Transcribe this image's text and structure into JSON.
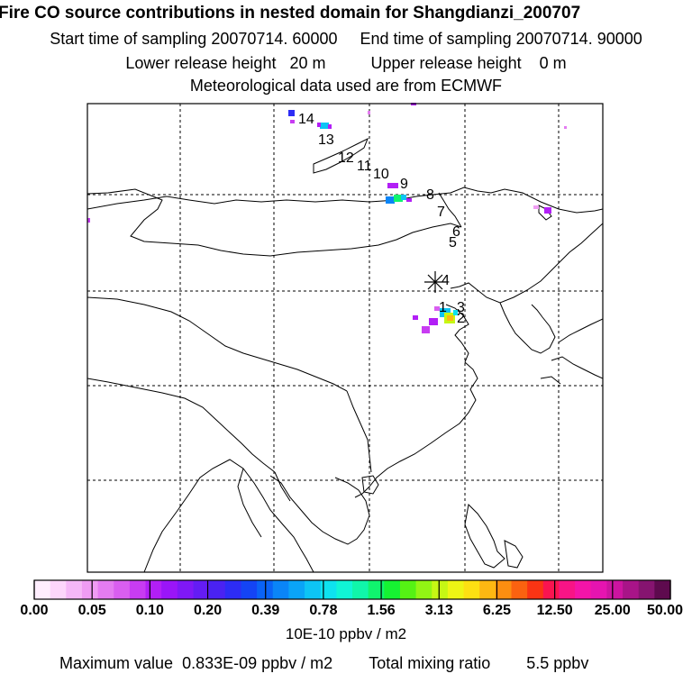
{
  "header": {
    "title": "Fire CO source contributions in nested domain for Shangdianzi_200707",
    "start_label": "Start time of sampling",
    "start_value": "20070714. 60000",
    "end_label": "End time of sampling",
    "end_value": "20070714. 90000",
    "lower_label": "Lower release height",
    "lower_value": "20 m",
    "upper_label": "Upper release height",
    "upper_value": "0 m",
    "met": "Meteorological data used are from ECMWF"
  },
  "trajectory_labels": [
    "1",
    "2",
    "3",
    "4",
    "5",
    "6",
    "7",
    "8",
    "9",
    "10",
    "11",
    "12",
    "13",
    "14"
  ],
  "colorbar": {
    "colors": [
      "#ffeefe",
      "#fdd6fb",
      "#f5b8f7",
      "#ef9cf3",
      "#e47cf1",
      "#d95ef0",
      "#c83cf2",
      "#b21ff6",
      "#9a15f8",
      "#7f18f6",
      "#641cf4",
      "#4a22f2",
      "#2d2cf5",
      "#1444f5",
      "#0a63f6",
      "#0a85f7",
      "#0aa4f7",
      "#0dc4f5",
      "#0ee2ef",
      "#10f5d6",
      "#10f6aa",
      "#10f46e",
      "#16f232",
      "#55f214",
      "#92f514",
      "#c6f714",
      "#eef514",
      "#fde012",
      "#fdb812",
      "#fc8e10",
      "#fb6210",
      "#fa3414",
      "#f91450",
      "#f81486",
      "#f414a8",
      "#e614b0",
      "#cc14a0",
      "#a81488",
      "#861470",
      "#5e0a4e"
    ],
    "ticks": [
      "0.00",
      "0.05",
      "0.10",
      "0.20",
      "0.39",
      "0.78",
      "1.56",
      "3.13",
      "6.25",
      "12.50",
      "25.00",
      "50.00"
    ],
    "unit": "10E-10 ppbv / m2"
  },
  "footer": {
    "max_label": "Maximum value",
    "max_value": "0.833E-09 ppbv / m2",
    "total_label": "Total mixing ratio",
    "total_value": "5.5 ppbv"
  }
}
